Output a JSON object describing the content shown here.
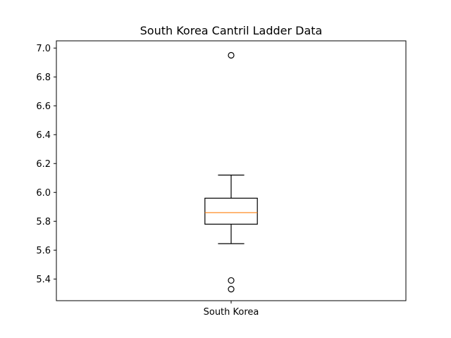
{
  "chart_data": {
    "type": "box",
    "title": "South Korea Cantril Ladder Data",
    "xlabel": "",
    "ylabel": "",
    "categories": [
      "South Korea"
    ],
    "boxes": [
      {
        "name": "South Korea",
        "whisker_low": 5.645,
        "q1": 5.78,
        "median": 5.86,
        "q3": 5.96,
        "whisker_high": 6.12,
        "outliers": [
          6.95,
          5.39,
          5.33
        ]
      }
    ],
    "ylim": [
      5.25,
      7.05
    ],
    "yticks": [
      5.4,
      5.6,
      5.8,
      6.0,
      6.2,
      6.4,
      6.6,
      6.8,
      7.0
    ],
    "ytick_labels": [
      "5.4",
      "5.6",
      "5.8",
      "6.0",
      "6.2",
      "6.4",
      "6.6",
      "6.8",
      "7.0"
    ],
    "grid": false,
    "colors": {
      "median": "#ff7f0e",
      "box": "#000000"
    }
  }
}
